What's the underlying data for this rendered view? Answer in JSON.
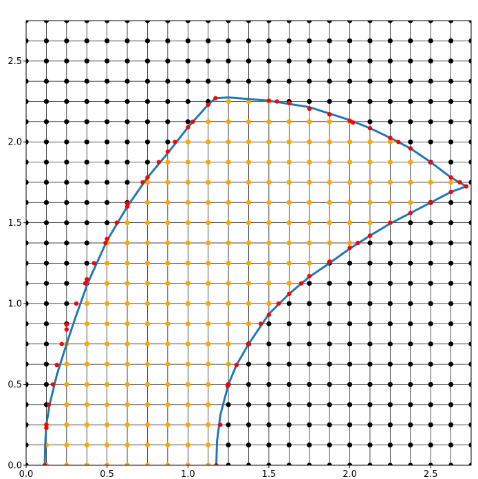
{
  "chart_data": {
    "type": "scatter",
    "title": "",
    "xlabel": "",
    "ylabel": "",
    "xlim": [
      0.0,
      2.75
    ],
    "ylim": [
      0.0,
      2.75
    ],
    "grid": true,
    "grid_spacing": 0.125,
    "x_ticks": [
      0.0,
      0.5,
      1.0,
      1.5,
      2.0,
      2.5
    ],
    "y_ticks": [
      0.0,
      0.5,
      1.0,
      1.5,
      2.0,
      2.5
    ],
    "x_tick_labels": [
      "0.0",
      "0.5",
      "1.0",
      "1.5",
      "2.0",
      "2.5"
    ],
    "y_tick_labels": [
      "0.0",
      "0.5",
      "1.0",
      "1.5",
      "2.0",
      "2.5"
    ],
    "colors": {
      "outside_points": "#000000",
      "inside_points": "#ffa500",
      "boundary_curve": "#1f77b4",
      "intersection_points": "#ff0000",
      "grid": "#000000"
    },
    "series": [
      {
        "type": "line",
        "points": [
          [
            0.115,
            0.0
          ],
          [
            0.118,
            0.13
          ],
          [
            0.125,
            0.25
          ],
          [
            0.145,
            0.375
          ],
          [
            0.19,
            0.56
          ],
          [
            0.25,
            0.75
          ],
          [
            0.3,
            0.9
          ],
          [
            0.38,
            1.125
          ],
          [
            0.5,
            1.39
          ],
          [
            0.625,
            1.6
          ],
          [
            0.75,
            1.78
          ],
          [
            0.875,
            1.93
          ],
          [
            1.0,
            2.09
          ],
          [
            1.125,
            2.23
          ],
          [
            1.17,
            2.27
          ],
          [
            1.25,
            2.275
          ],
          [
            1.375,
            2.265
          ],
          [
            1.5,
            2.255
          ],
          [
            1.625,
            2.235
          ],
          [
            1.75,
            2.215
          ],
          [
            1.875,
            2.175
          ],
          [
            2.0,
            2.135
          ],
          [
            2.125,
            2.085
          ],
          [
            2.25,
            2.025
          ],
          [
            2.375,
            1.96
          ],
          [
            2.5,
            1.875
          ],
          [
            2.625,
            1.78
          ],
          [
            2.72,
            1.725
          ],
          [
            2.625,
            1.69
          ],
          [
            2.5,
            1.625
          ],
          [
            2.375,
            1.56
          ],
          [
            2.25,
            1.495
          ],
          [
            2.125,
            1.42
          ],
          [
            2.0,
            1.34
          ],
          [
            1.875,
            1.25
          ],
          [
            1.75,
            1.165
          ],
          [
            1.625,
            1.06
          ],
          [
            1.5,
            0.935
          ],
          [
            1.375,
            0.75
          ],
          [
            1.3,
            0.62
          ],
          [
            1.25,
            0.5
          ],
          [
            1.2,
            0.31
          ],
          [
            1.18,
            0.15
          ],
          [
            1.175,
            0.0
          ]
        ]
      }
    ],
    "intersection_points": [
      [
        0.115,
        0.0
      ],
      [
        0.125,
        0.23
      ],
      [
        0.125,
        0.25
      ],
      [
        0.14,
        0.375
      ],
      [
        0.165,
        0.5
      ],
      [
        0.19,
        0.62
      ],
      [
        0.22,
        0.75
      ],
      [
        0.25,
        0.87
      ],
      [
        0.25,
        0.84
      ],
      [
        0.31,
        1.0
      ],
      [
        0.375,
        1.15
      ],
      [
        0.365,
        1.125
      ],
      [
        0.42,
        1.25
      ],
      [
        0.49,
        1.375
      ],
      [
        0.5,
        1.4
      ],
      [
        0.56,
        1.5
      ],
      [
        0.625,
        1.6
      ],
      [
        0.625,
        1.62
      ],
      [
        0.72,
        1.75
      ],
      [
        0.75,
        1.78
      ],
      [
        0.82,
        1.875
      ],
      [
        0.875,
        1.94
      ],
      [
        0.92,
        2.0
      ],
      [
        1.0,
        2.09
      ],
      [
        1.03,
        2.125
      ],
      [
        1.125,
        2.23
      ],
      [
        1.17,
        2.27
      ],
      [
        1.5,
        2.255
      ],
      [
        1.55,
        2.25
      ],
      [
        1.625,
        2.24
      ],
      [
        1.75,
        2.205
      ],
      [
        1.875,
        2.17
      ],
      [
        2.0,
        2.13
      ],
      [
        2.02,
        2.12
      ],
      [
        2.125,
        2.085
      ],
      [
        2.25,
        2.025
      ],
      [
        2.3,
        2.0
      ],
      [
        2.375,
        1.96
      ],
      [
        2.5,
        1.875
      ],
      [
        2.625,
        1.78
      ],
      [
        2.68,
        1.75
      ],
      [
        2.72,
        1.725
      ],
      [
        2.625,
        1.69
      ],
      [
        2.5,
        1.625
      ],
      [
        2.375,
        1.56
      ],
      [
        2.25,
        1.5
      ],
      [
        2.125,
        1.42
      ],
      [
        2.05,
        1.375
      ],
      [
        2.0,
        1.345
      ],
      [
        1.875,
        1.26
      ],
      [
        1.75,
        1.17
      ],
      [
        1.7,
        1.125
      ],
      [
        1.625,
        1.06
      ],
      [
        1.56,
        1.0
      ],
      [
        1.5,
        0.93
      ],
      [
        1.45,
        0.875
      ],
      [
        1.375,
        0.75
      ],
      [
        1.3,
        0.62
      ],
      [
        1.25,
        0.5
      ],
      [
        1.245,
        0.49
      ],
      [
        1.2,
        0.25
      ],
      [
        1.175,
        0.0
      ]
    ]
  }
}
